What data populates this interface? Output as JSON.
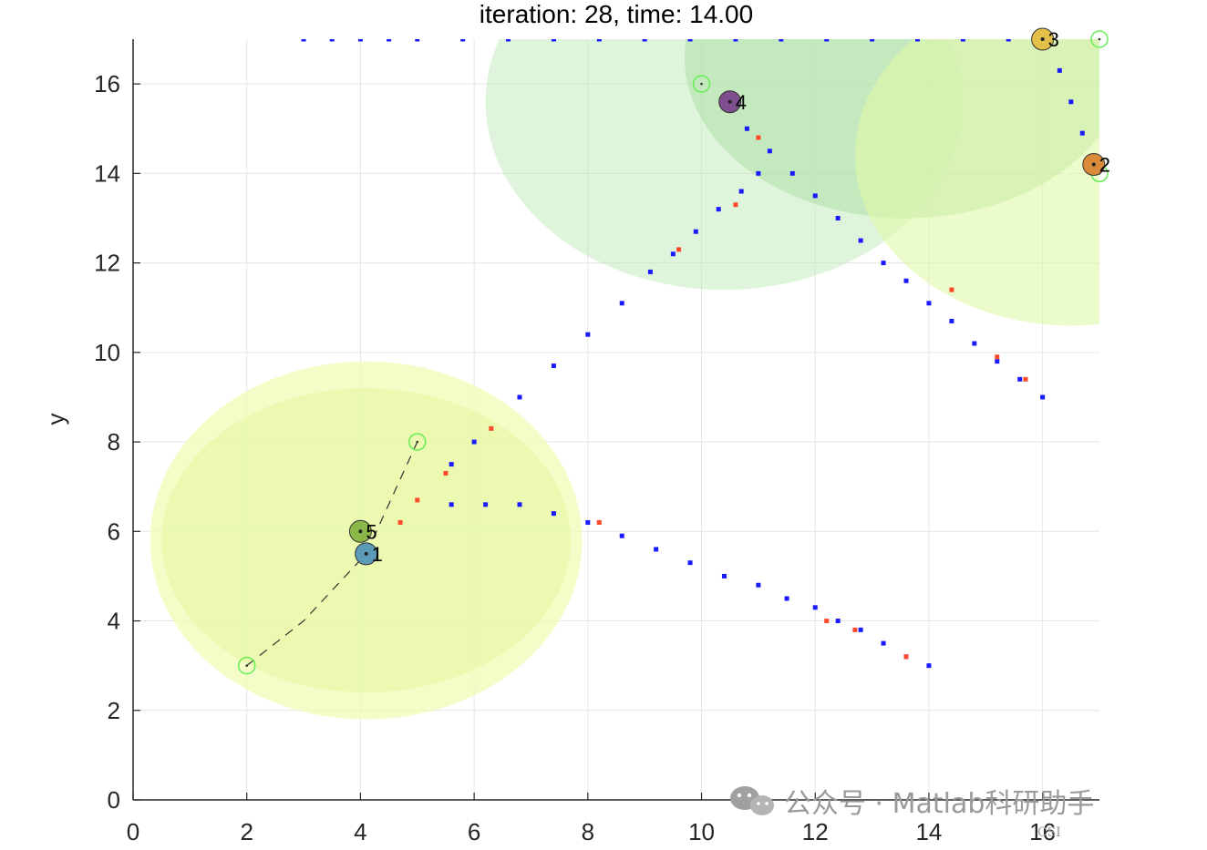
{
  "chart_data": {
    "type": "scatter",
    "title": "iteration: 28, time: 14.00",
    "xlabel": "",
    "ylabel": "y",
    "xlim": [
      0,
      17
    ],
    "ylim": [
      0,
      17
    ],
    "xticks": [
      0,
      2,
      4,
      6,
      8,
      10,
      12,
      14,
      16
    ],
    "yticks": [
      0,
      2,
      4,
      6,
      8,
      10,
      12,
      14,
      16
    ],
    "grid": true,
    "regions": [
      {
        "cx": 13.6,
        "cy": 16.6,
        "rx": 3.9,
        "ry": 3.6,
        "color": "#a8d8a0",
        "opacity": 0.55
      },
      {
        "cx": 10.4,
        "cy": 15.6,
        "rx": 4.2,
        "ry": 4.2,
        "color": "#b8e8b0",
        "opacity": 0.45
      },
      {
        "cx": 16.5,
        "cy": 14.4,
        "rx": 3.8,
        "ry": 3.8,
        "color": "#e0f8a8",
        "opacity": 0.6
      },
      {
        "cx": 4.1,
        "cy": 5.8,
        "rx": 3.8,
        "ry": 4.0,
        "color": "#f0fcb0",
        "opacity": 0.7
      },
      {
        "cx": 4.1,
        "cy": 5.8,
        "rx": 3.6,
        "ry": 3.4,
        "color": "#e4f8a0",
        "opacity": 0.6
      }
    ],
    "goals": [
      {
        "x": 2.0,
        "y": 3.0
      },
      {
        "x": 5.0,
        "y": 8.0
      },
      {
        "x": 10.0,
        "y": 16.0
      },
      {
        "x": 17.0,
        "y": 14.0
      },
      {
        "x": 17.0,
        "y": 17.0
      }
    ],
    "dashed_paths": [
      {
        "x": [
          2.0,
          3.0,
          4.1,
          5.0
        ],
        "y": [
          3.0,
          4.0,
          5.5,
          8.0
        ]
      }
    ],
    "trajectories": [
      {
        "x": [
          11.0,
          10.7,
          10.3,
          9.9,
          9.5,
          9.1,
          8.6,
          8.0,
          7.4,
          6.8,
          6.0,
          5.6
        ],
        "y": [
          14.0,
          13.6,
          13.2,
          12.7,
          12.2,
          11.8,
          11.1,
          10.4,
          9.7,
          9.0,
          8.0,
          7.5
        ]
      },
      {
        "x": [
          16.0,
          15.6,
          15.2,
          14.8,
          14.4,
          14.0,
          13.6,
          13.2,
          12.8,
          12.4,
          12.0,
          11.6,
          11.2,
          10.8
        ],
        "y": [
          9.0,
          9.4,
          9.8,
          10.2,
          10.7,
          11.1,
          11.6,
          12.0,
          12.5,
          13.0,
          13.5,
          14.0,
          14.5,
          15.0
        ]
      },
      {
        "x": [
          14.0,
          13.6,
          13.2,
          12.8,
          12.4,
          12.0,
          11.5,
          11.0,
          10.4,
          9.8,
          9.2,
          8.6,
          8.0,
          7.4,
          6.8,
          6.2,
          5.6
        ],
        "y": [
          3.0,
          3.2,
          3.5,
          3.8,
          4.0,
          4.3,
          4.5,
          4.8,
          5.0,
          5.3,
          5.6,
          5.9,
          6.2,
          6.4,
          6.6,
          6.6,
          6.6
        ]
      },
      {
        "x": [
          16.9,
          16.7,
          16.5,
          16.3,
          16.1
        ],
        "y": [
          14.2,
          14.9,
          15.6,
          16.3,
          16.9
        ]
      },
      {
        "x": [
          3.0,
          3.5,
          4.0,
          4.5,
          5.0,
          5.8,
          6.6,
          7.4,
          8.2,
          9.0,
          9.8,
          10.6,
          11.4,
          12.2,
          13.0,
          13.8,
          14.6,
          15.4,
          16.0
        ],
        "y": [
          17.0,
          17.0,
          17.0,
          17.0,
          17.0,
          17.0,
          17.0,
          17.0,
          17.0,
          17.0,
          17.0,
          17.0,
          17.0,
          17.0,
          17.0,
          17.0,
          17.0,
          17.0,
          17.0
        ]
      }
    ],
    "red_markers": [
      {
        "x": 6.3,
        "y": 8.3
      },
      {
        "x": 5.5,
        "y": 7.3
      },
      {
        "x": 5.0,
        "y": 6.7
      },
      {
        "x": 4.7,
        "y": 6.2
      },
      {
        "x": 8.2,
        "y": 6.2
      },
      {
        "x": 12.2,
        "y": 4.0
      },
      {
        "x": 12.7,
        "y": 3.8
      },
      {
        "x": 13.6,
        "y": 3.2
      },
      {
        "x": 11.0,
        "y": 14.8
      },
      {
        "x": 9.6,
        "y": 12.3
      },
      {
        "x": 10.6,
        "y": 13.3
      },
      {
        "x": 14.4,
        "y": 11.4
      },
      {
        "x": 15.2,
        "y": 9.9
      },
      {
        "x": 15.7,
        "y": 9.4
      }
    ],
    "agents": [
      {
        "label": "1",
        "x": 4.1,
        "y": 5.5,
        "color": "#5b9bb8"
      },
      {
        "label": "2",
        "x": 16.9,
        "y": 14.2,
        "color": "#d98a3a"
      },
      {
        "label": "3",
        "x": 16.0,
        "y": 17.0,
        "color": "#e2c04a"
      },
      {
        "label": "4",
        "x": 10.5,
        "y": 15.6,
        "color": "#7e4e8e"
      },
      {
        "label": "5",
        "x": 4.0,
        "y": 6.0,
        "color": "#8cb84a"
      }
    ],
    "colors": {
      "trajectory": "#1a1aff",
      "marker_red": "#ff4a2a",
      "goal": "#66ee55",
      "grid": "#e6e6e6",
      "axis": "#262626"
    }
  },
  "watermark": {
    "icon": "wechat-icon",
    "text": "公众号 · Matlab科研助手",
    "small": "CSI"
  }
}
